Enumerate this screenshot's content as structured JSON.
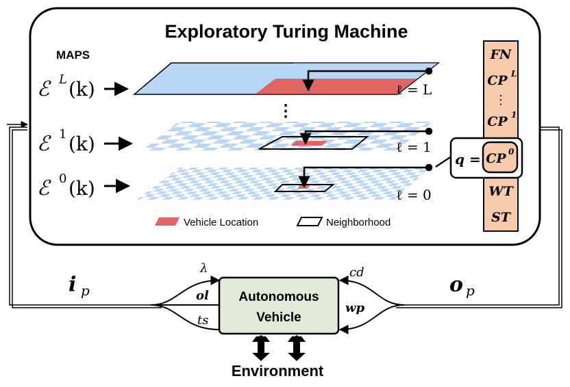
{
  "title": "Exploratory Turing Machine",
  "maps_label": "MAPS",
  "levels": [
    {
      "E": "ℰ",
      "sup": "L",
      "arg": "(k)",
      "ell": "ℓ = L"
    },
    {
      "E": "ℰ",
      "sup": "1",
      "arg": "(k)",
      "ell": "ℓ = 1"
    },
    {
      "E": "ℰ",
      "sup": "0",
      "arg": "(k)",
      "ell": "ℓ = 0"
    }
  ],
  "ellipsis": "⋮",
  "legend": {
    "vehicle_location": "Vehicle Location",
    "neighborhood": "Neighborhood"
  },
  "registers": {
    "fn": "FN",
    "cp": "CP",
    "cpL_sup": "L",
    "dots": "⋮",
    "cp1_sup": "1",
    "wt": "WT",
    "st": "ST"
  },
  "q_box": {
    "q": "q =",
    "cp": "CP",
    "sup": "0"
  },
  "vehicle": {
    "line1": "Autonomous",
    "line2": "Vehicle"
  },
  "inputs": {
    "i": "i",
    "i_sub": "p",
    "lambda": "λ",
    "ol": "ol",
    "ts": "ts"
  },
  "outputs": {
    "o": "o",
    "o_sub": "p",
    "cd": "cd",
    "wp": "wp"
  },
  "environment": "Environment",
  "colors": {
    "light_blue": "#b9d7f5",
    "red": "#e06666",
    "orange": "#f8cbad",
    "vehicle_box": "#e2ebd9"
  }
}
